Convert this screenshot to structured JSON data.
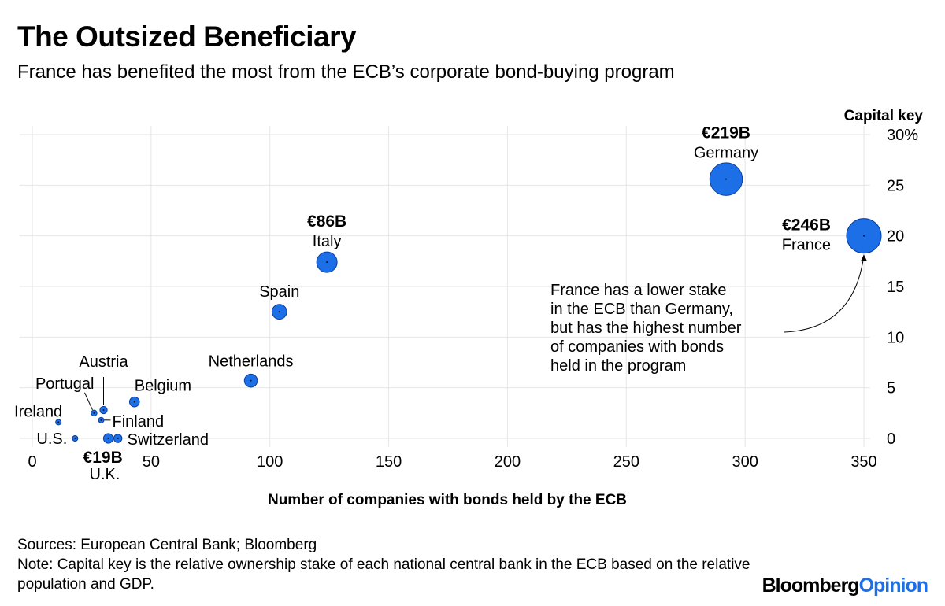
{
  "header": {
    "title": "The Outsized Beneficiary",
    "subtitle": "France has benefited the most from the ECB’s corporate bond-buying program"
  },
  "chart_data": {
    "type": "scatter",
    "title": "The Outsized Beneficiary",
    "subtitle": "France has benefited the most from the ECB’s corporate bond-buying program",
    "xlabel": "Number of companies with bonds held by the ECB",
    "ylabel": "Capital key",
    "xlim": [
      0,
      350
    ],
    "ylim": [
      0,
      30
    ],
    "x_ticks": [
      "0",
      "50",
      "100",
      "150",
      "200",
      "250",
      "300",
      "350"
    ],
    "x_tick_values": [
      0,
      50,
      100,
      150,
      200,
      250,
      300,
      350
    ],
    "y_ticks": [
      "0",
      "5",
      "10",
      "15",
      "20",
      "25",
      "30%"
    ],
    "y_tick_values": [
      0,
      5,
      10,
      15,
      20,
      25,
      30
    ],
    "grid": true,
    "bubble_color": "#1d6fe8",
    "points": [
      {
        "name": "France",
        "x": 350,
        "y": 20,
        "holdings": "€246B",
        "size": 246
      },
      {
        "name": "Germany",
        "x": 292,
        "y": 25.6,
        "holdings": "€219B",
        "size": 219
      },
      {
        "name": "Italy",
        "x": 124,
        "y": 17.4,
        "holdings": "€86B",
        "size": 86
      },
      {
        "name": "Spain",
        "x": 104,
        "y": 12.5,
        "holdings": "",
        "size": 45
      },
      {
        "name": "Netherlands",
        "x": 92,
        "y": 5.7,
        "holdings": "",
        "size": 35
      },
      {
        "name": "Belgium",
        "x": 43,
        "y": 3.6,
        "holdings": "",
        "size": 20
      },
      {
        "name": "Austria",
        "x": 30,
        "y": 2.8,
        "holdings": "",
        "size": 11
      },
      {
        "name": "Portugal",
        "x": 26,
        "y": 2.5,
        "holdings": "",
        "size": 7
      },
      {
        "name": "Finland",
        "x": 29,
        "y": 1.8,
        "holdings": "",
        "size": 6
      },
      {
        "name": "Ireland",
        "x": 11,
        "y": 1.6,
        "holdings": "",
        "size": 4
      },
      {
        "name": "U.S.",
        "x": 18,
        "y": 0,
        "holdings": "",
        "size": 4
      },
      {
        "name": "U.K.",
        "x": 32,
        "y": 0,
        "holdings": "€19B",
        "size": 19
      },
      {
        "name": "Switzerland",
        "x": 36,
        "y": 0,
        "holdings": "",
        "size": 14
      }
    ],
    "annotation": "France has a lower stake in the ECB than Germany, but has the highest number of companies with bonds held in the program"
  },
  "footer": {
    "sources": "Sources: European Central Bank; Bloomberg",
    "note": "Note: Capital key is the relative ownership stake of each national central bank in the ECB based on the relative population and GDP.",
    "brand_part1": "Bloomberg",
    "brand_part2": "Opinion"
  }
}
